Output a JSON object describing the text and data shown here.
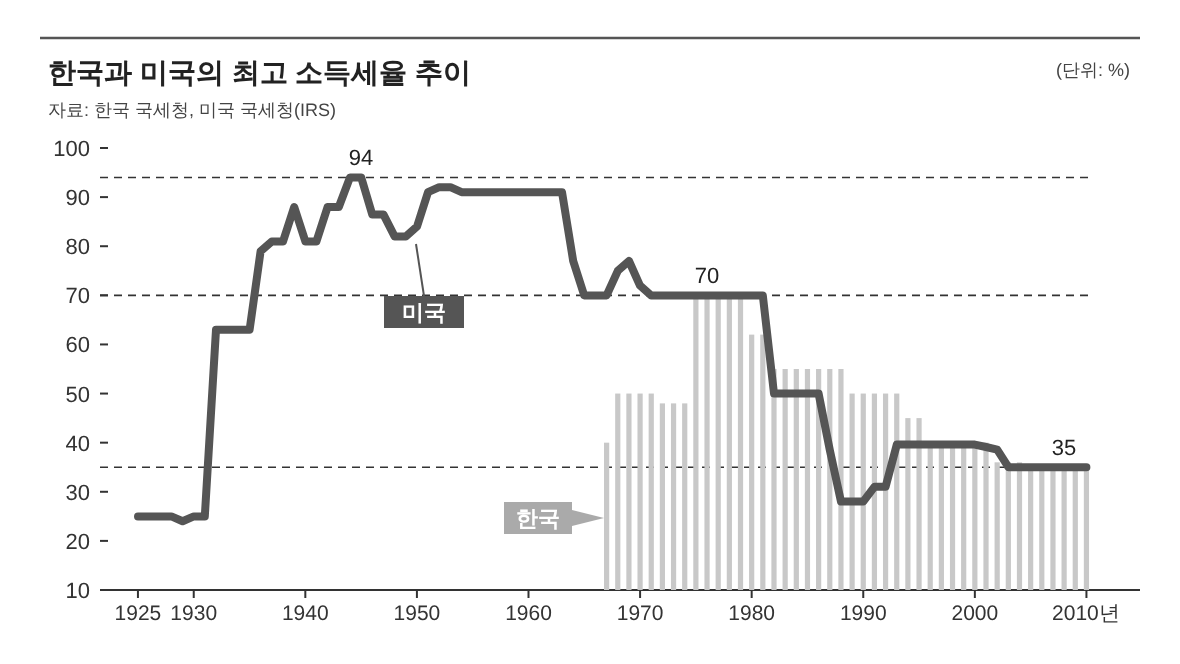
{
  "chart_data": {
    "type": "bar",
    "title": "한국과 미국의 최고 소득세율 추이",
    "subtitle": "자료: 한국 국세청, 미국 국세청(IRS)",
    "annotations": [
      "(단위: %)",
      {
        "text": "94",
        "x": 1945,
        "y": 94
      },
      {
        "text": "70",
        "x": 1976,
        "y": 70
      },
      {
        "text": "35",
        "x": 2008,
        "y": 35
      }
    ],
    "xlim": [
      1921.6,
      2014.8
    ],
    "xticks": [
      1925,
      1930,
      1940,
      1950,
      1960,
      1970,
      1980,
      1990,
      2000,
      {
        "value": 2010,
        "label": "2010년"
      }
    ],
    "ylim": [
      10,
      100
    ],
    "yticks": [
      10,
      20,
      30,
      40,
      50,
      60,
      70,
      80,
      90,
      100
    ],
    "grid": false,
    "legend": false,
    "ref_lines": [
      {
        "axis": "y",
        "value": 94,
        "line_style": "dashed",
        "color": "#333333"
      },
      {
        "axis": "y",
        "value": 70,
        "line_style": "dashed",
        "color": "#333333"
      },
      {
        "axis": "y",
        "value": 35,
        "line_style": "dashed",
        "color": "#333333"
      }
    ],
    "series": [
      {
        "name": "한국",
        "color": "#c8c8c8",
        "x": [
          1967,
          1968,
          1969,
          1970,
          1971,
          1972,
          1973,
          1974,
          1975,
          1976,
          1977,
          1978,
          1979,
          1980,
          1981,
          1982,
          1983,
          1984,
          1985,
          1986,
          1987,
          1988,
          1989,
          1990,
          1991,
          1992,
          1993,
          1994,
          1995,
          1996,
          1997,
          1998,
          1999,
          2000,
          2001,
          2002,
          2003,
          2004,
          2005,
          2006,
          2007,
          2008,
          2009,
          2010
        ],
        "values": [
          40,
          50,
          50,
          50,
          50,
          48,
          48,
          48,
          70,
          70,
          70,
          70,
          70,
          62,
          62,
          55,
          55,
          55,
          55,
          55,
          55,
          55,
          50,
          50,
          50,
          50,
          50,
          45,
          45,
          40,
          40,
          40,
          40,
          40,
          40,
          36,
          36,
          36,
          35,
          35,
          35,
          35,
          35,
          35
        ]
      },
      {
        "name": "미국",
        "type": "line",
        "color": "#555555",
        "line_style": "solid",
        "marker": "none",
        "x": [
          1925,
          1928,
          1929,
          1930,
          1931,
          1932,
          1935,
          1936,
          1937,
          1938,
          1939,
          1940,
          1941,
          1942,
          1943,
          1944,
          1945,
          1946,
          1947,
          1948,
          1949,
          1950,
          1951,
          1952,
          1953,
          1954,
          1963,
          1964,
          1965,
          1967,
          1968,
          1969,
          1970,
          1971,
          1981,
          1982,
          1986,
          1987,
          1988,
          1990,
          1991,
          1992,
          1993,
          2000,
          2001,
          2002,
          2003,
          2010
        ],
        "values": [
          25,
          25,
          24,
          25,
          25,
          63,
          63,
          79,
          81,
          81,
          88,
          81,
          81,
          88,
          88,
          94,
          94,
          86.5,
          86.5,
          82,
          82,
          84,
          91,
          92,
          92,
          91,
          91,
          77,
          70,
          70,
          75,
          77,
          72,
          70,
          70,
          50,
          50,
          38.5,
          28,
          28,
          31,
          31,
          39.6,
          39.6,
          39.1,
          38.6,
          35,
          35
        ]
      }
    ]
  }
}
